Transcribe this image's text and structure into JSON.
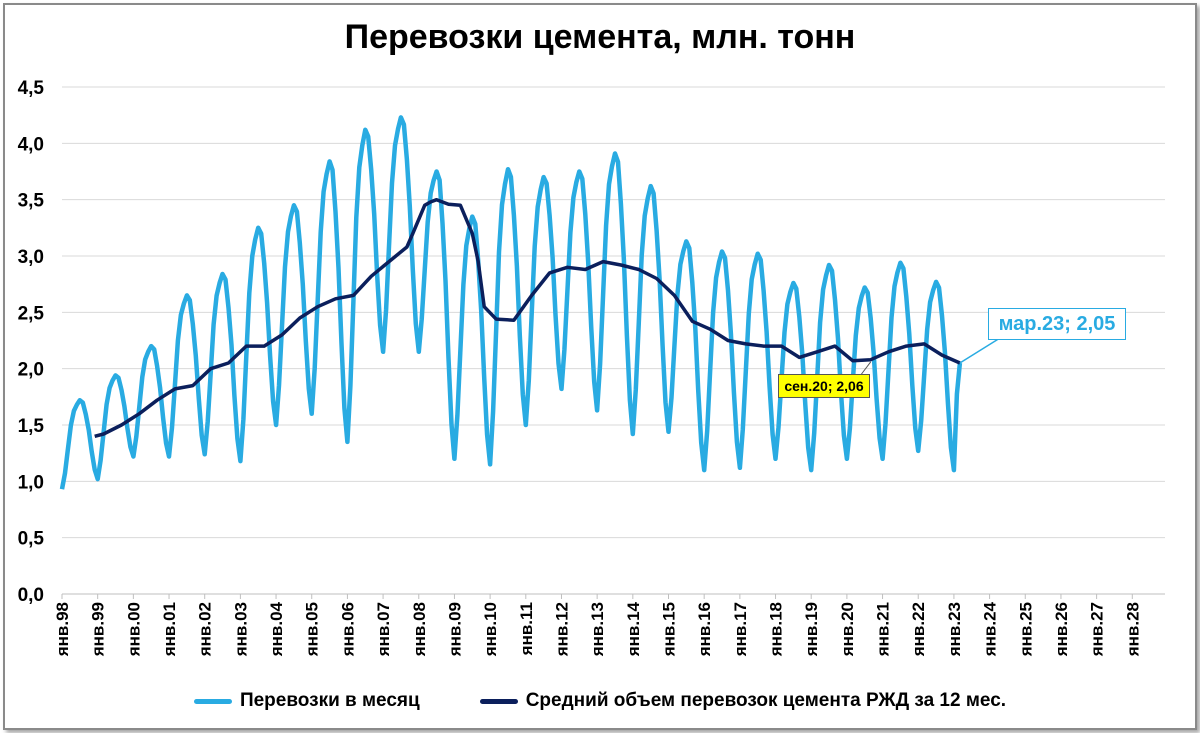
{
  "chart_data": {
    "type": "line",
    "title": "Перевозки цемента, млн. тонн",
    "xlabel": "",
    "ylabel": "",
    "ylim": [
      0,
      4.5
    ],
    "y_ticks": [
      "0,0",
      "0,5",
      "1,0",
      "1,5",
      "2,0",
      "2,5",
      "3,0",
      "3,5",
      "4,0",
      "4,5"
    ],
    "x_ticks": [
      "янв.98",
      "янв.99",
      "янв.00",
      "янв.01",
      "янв.02",
      "янв.03",
      "янв.04",
      "янв.05",
      "янв.06",
      "янв.07",
      "янв.08",
      "янв.09",
      "янв.10",
      "янв.11",
      "янв.12",
      "янв.13",
      "янв.14",
      "янв.15",
      "янв.16",
      "янв.17",
      "янв.18",
      "янв.19",
      "янв.20",
      "янв.21",
      "янв.22",
      "янв.23",
      "янв.24",
      "янв.25",
      "янв.26",
      "янв.27",
      "янв.28"
    ],
    "x_axis": "monthly, Jan 1998 – Dec 2028",
    "grid": true,
    "legend_position": "bottom",
    "series": [
      {
        "name": "Перевозки в месяц",
        "color": "#29abe2",
        "start": "янв.98",
        "annual_pattern": "minimum in January, peak in July–August",
        "yearly_jan_low": [
          0.93,
          1.02,
          1.22,
          1.22,
          1.24,
          1.18,
          1.5,
          1.6,
          1.35,
          2.15,
          2.15,
          1.2,
          1.15,
          1.5,
          1.82,
          1.63,
          1.42,
          1.44,
          1.1,
          1.12,
          1.2,
          1.1,
          1.2,
          1.2,
          1.27,
          1.1
        ],
        "yearly_summer_peak": [
          1.72,
          1.94,
          2.2,
          2.65,
          2.84,
          3.25,
          3.45,
          3.84,
          4.12,
          4.23,
          3.75,
          3.35,
          3.77,
          3.7,
          3.75,
          3.91,
          3.62,
          3.13,
          3.04,
          3.02,
          2.76,
          2.92,
          2.72,
          2.94,
          2.77
        ],
        "last_point": {
          "label": "мар.23",
          "value": 2.05
        }
      },
      {
        "name": "Средний объем перевозок цемента РЖД за 12 мес.",
        "color": "#0b1f5c",
        "start": "дек.98",
        "yearly_jan_values": [
          1.4,
          1.57,
          1.83,
          2.02,
          2.2,
          2.45,
          2.63,
          2.84,
          3.05,
          3.45,
          2.55,
          2.42,
          2.8,
          2.9,
          2.95,
          2.87,
          2.68,
          2.35,
          2.22,
          2.2,
          2.12,
          2.18,
          2.1,
          2.18,
          2.1,
          2.05
        ],
        "x_months": [
          11,
          14,
          20,
          26,
          32,
          38,
          44,
          50,
          56,
          62,
          68,
          74,
          80,
          86,
          92,
          98,
          104,
          110,
          116,
          118,
          122,
          124,
          126,
          130,
          134,
          138,
          140,
          142,
          146,
          152,
          158,
          164,
          170,
          176,
          182,
          188,
          194,
          200,
          206,
          212,
          218,
          224,
          230,
          236,
          242,
          248,
          254,
          260,
          266,
          272,
          278,
          284,
          290,
          296,
          302
        ],
        "values": [
          1.4,
          1.42,
          1.5,
          1.6,
          1.72,
          1.82,
          1.85,
          2.0,
          2.05,
          2.2,
          2.2,
          2.3,
          2.45,
          2.55,
          2.62,
          2.65,
          2.82,
          2.95,
          3.08,
          3.2,
          3.45,
          3.48,
          3.5,
          3.46,
          3.45,
          3.2,
          2.95,
          2.55,
          2.44,
          2.43,
          2.65,
          2.85,
          2.9,
          2.88,
          2.95,
          2.92,
          2.88,
          2.8,
          2.65,
          2.42,
          2.35,
          2.25,
          2.22,
          2.2,
          2.2,
          2.1,
          2.15,
          2.2,
          2.07,
          2.08,
          2.15,
          2.2,
          2.22,
          2.12,
          2.05
        ],
        "min_point": {
          "label": "сен.20",
          "value": 2.06
        },
        "last_point": {
          "label": "мар.23",
          "value": 2.05
        }
      }
    ],
    "annotations": [
      {
        "text": "мар.23; 2,05",
        "style": "white box, cyan text"
      },
      {
        "text": "сен.20; 2,06",
        "style": "yellow box, black text"
      }
    ]
  }
}
